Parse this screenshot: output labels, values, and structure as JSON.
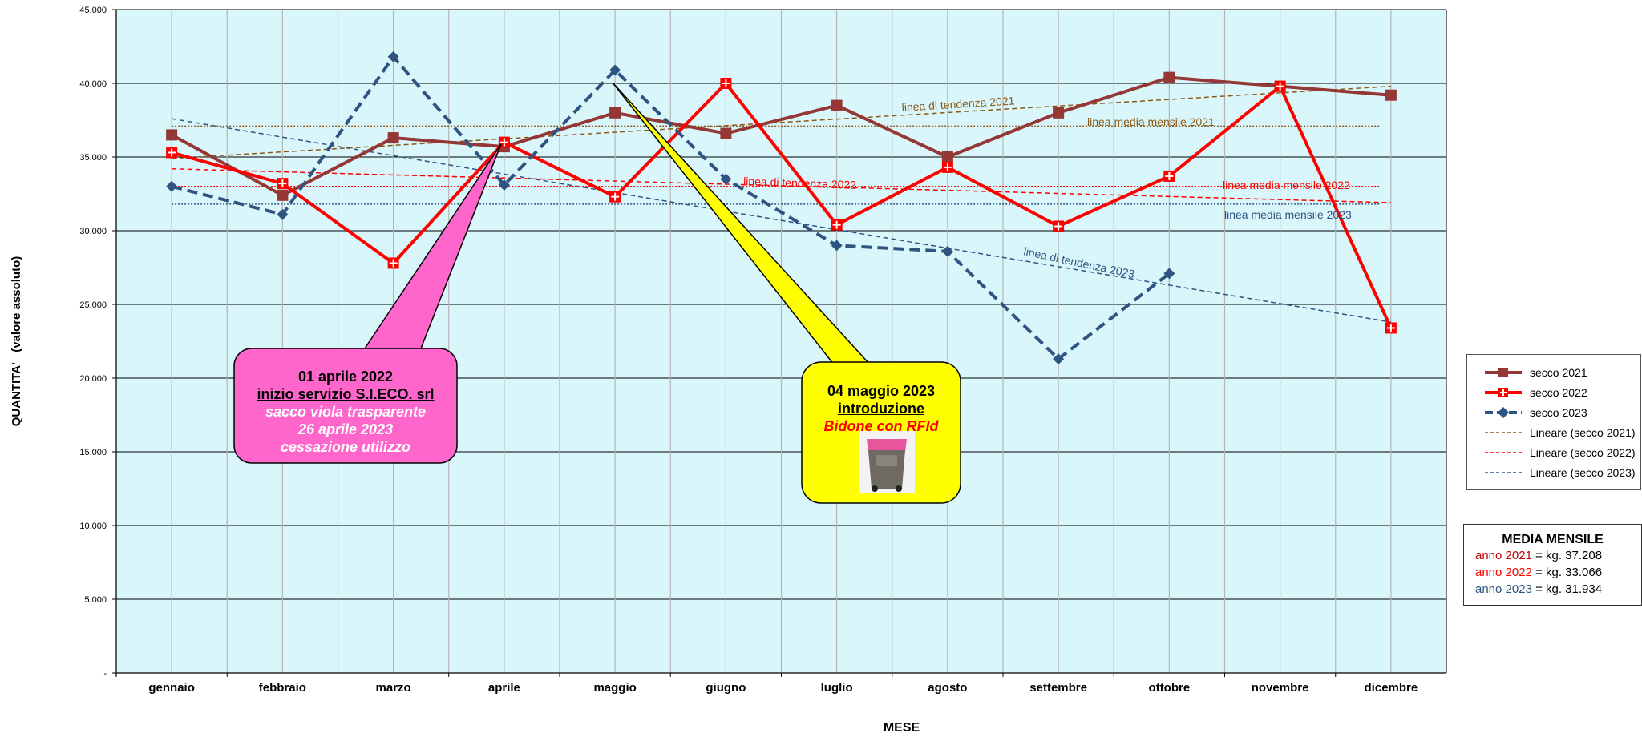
{
  "chart_data": {
    "type": "line",
    "xlabel": "MESE",
    "ylabel": "QUANTITA'   (valore assoluto)",
    "ylim": [
      0,
      45000
    ],
    "yticks": [
      "-",
      "5.000",
      "10.000",
      "15.000",
      "20.000",
      "25.000",
      "30.000",
      "35.000",
      "40.000",
      "45.000"
    ],
    "categories": [
      "gennaio",
      "febbraio",
      "marzo",
      "aprile",
      "maggio",
      "giugno",
      "luglio",
      "agosto",
      "settembre",
      "ottobre",
      "novembre",
      "dicembre"
    ],
    "series": [
      {
        "name": "secco 2021",
        "color": "#953735",
        "values": [
          36500,
          32400,
          36300,
          35700,
          38000,
          36600,
          38500,
          35000,
          38000,
          40400,
          39800,
          39200
        ]
      },
      {
        "name": "secco 2022",
        "color": "#ff0000",
        "values": [
          35300,
          33200,
          27800,
          36000,
          32300,
          40000,
          30400,
          34300,
          30300,
          33700,
          39800,
          23400
        ]
      },
      {
        "name": "secco 2023",
        "color": "#2f5482",
        "values": [
          33000,
          31100,
          41800,
          33100,
          40900,
          33500,
          29000,
          28600,
          21300,
          27100,
          null,
          null
        ]
      }
    ],
    "trendlines": [
      {
        "name": "Lineare (secco 2021)",
        "color": "#8B5A1A",
        "start": 34900,
        "end": 39800
      },
      {
        "name": "Lineare (secco 2022)",
        "color": "#ff0000",
        "start": 34200,
        "end": 31900
      },
      {
        "name": "Lineare (secco 2023)",
        "color": "#2f5482",
        "start": 37600,
        "end": 23800
      }
    ],
    "average_lines": [
      {
        "color": "#8B5A1A",
        "value": 37100
      },
      {
        "color": "#ff0000",
        "value": 33000
      },
      {
        "color": "#2f5482",
        "value": 31800
      }
    ],
    "annotations": [
      {
        "text": "linea di tendenza 2021",
        "color": "#8B5A1A"
      },
      {
        "text": "linea media mensile 2021",
        "color": "#8B5A1A"
      },
      {
        "text": "linea di tendenza 2022",
        "color": "#ff0000"
      },
      {
        "text": "linea media mensile 2022",
        "color": "#ff0000"
      },
      {
        "text": "linea di tendenza 2023",
        "color": "#2f5482"
      },
      {
        "text": "linea media mensile 2023",
        "color": "#2f5482"
      }
    ],
    "legend_position": "right",
    "grid": true,
    "plot_background": "#d9f7fb"
  },
  "callout_1": {
    "line1": "01 aprile 2022",
    "line2": "inizio servizio S.I.ECO. srl",
    "line3": "sacco viola trasparente",
    "line4": "26 aprile 2023",
    "line5": "cessazione utilizzo",
    "fill": "#ff66cc"
  },
  "callout_2": {
    "line1": "04 maggio 2023",
    "line2": "introduzione",
    "line3": "Bidone con RFId",
    "fill": "#ffff00"
  },
  "media_mensile": {
    "title": "MEDIA MENSILE",
    "rows": [
      {
        "year": "anno 2021",
        "value": " = kg. 37.208",
        "color": "#c00000"
      },
      {
        "year": "anno 2022",
        "value": " = kg. 33.066",
        "color": "#ff0000"
      },
      {
        "year": "anno 2023",
        "value": " = kg. 31.934",
        "color": "#2f5482"
      }
    ]
  }
}
